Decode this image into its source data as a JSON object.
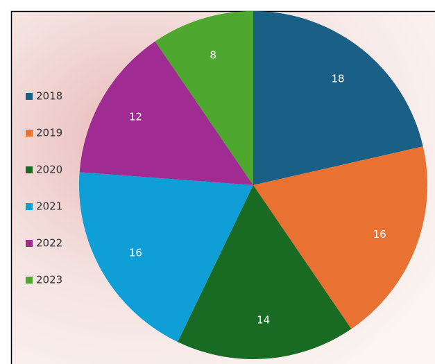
{
  "chart_data": {
    "type": "pie",
    "categories": [
      "2018",
      "2019",
      "2020",
      "2021",
      "2022",
      "2023"
    ],
    "values": [
      18,
      16,
      14,
      16,
      12,
      8
    ],
    "colors": [
      "#1a5f85",
      "#e97132",
      "#196b24",
      "#0f9ed5",
      "#a02b93",
      "#4ea72e"
    ],
    "legend": "left"
  }
}
